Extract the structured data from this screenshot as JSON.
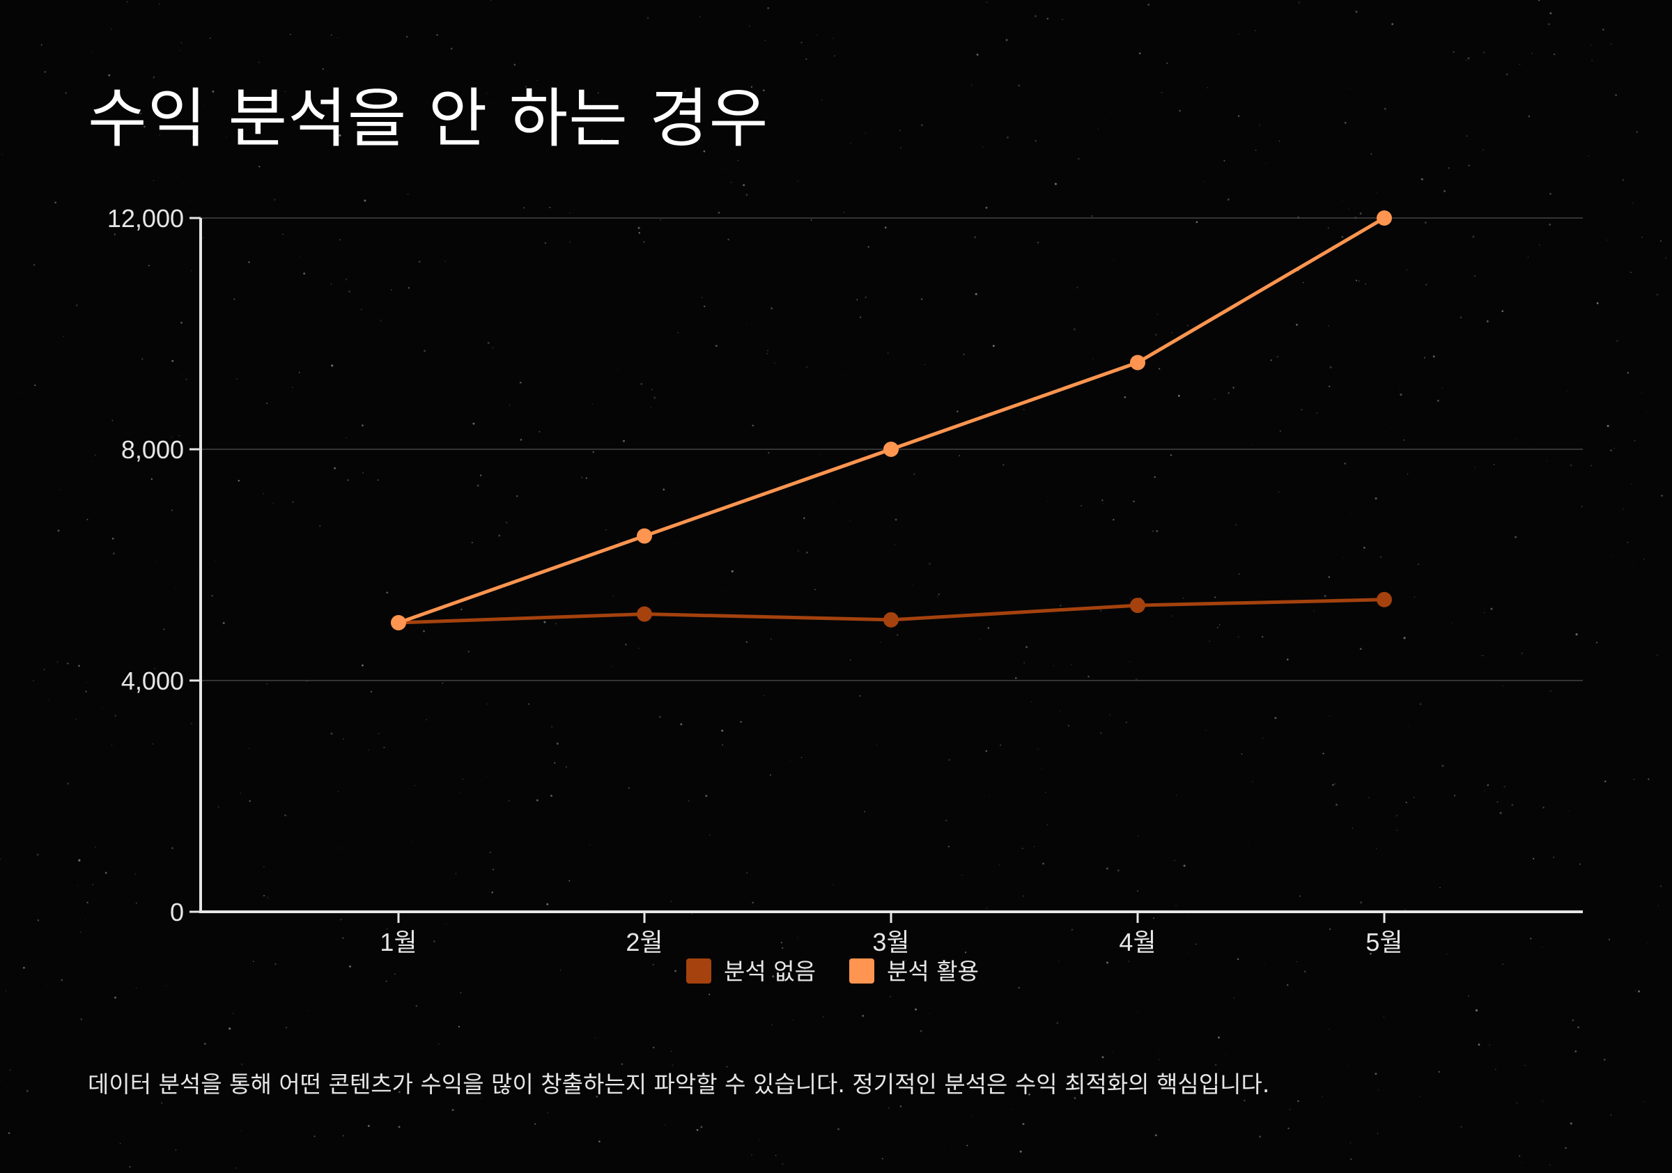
{
  "title": "수익 분석을 안 하는 경우",
  "caption": "데이터 분석을 통해 어떤 콘텐츠가 수익을 많이 창출하는지 파악할 수 있습니다. 정기적인 분석은 수익 최적화의 핵심입니다.",
  "colors": {
    "background": "#050505",
    "series_without": "#A5420E",
    "series_with": "#FF9550",
    "axis": "#e6e6e6",
    "grid": "#444444"
  },
  "chart_data": {
    "type": "line",
    "categories": [
      "1월",
      "2월",
      "3월",
      "4월",
      "5월"
    ],
    "series": [
      {
        "name": "분석 없음",
        "color": "#A5420E",
        "values": [
          5000,
          5150,
          5050,
          5300,
          5400
        ]
      },
      {
        "name": "분석 활용",
        "color": "#FF9550",
        "values": [
          5000,
          6500,
          8000,
          9500,
          12000
        ]
      }
    ],
    "yticks": [
      0,
      4000,
      8000,
      12000
    ],
    "ytick_labels": [
      "0",
      "4,000",
      "8,000",
      "12,000"
    ],
    "ylim": [
      0,
      12000
    ],
    "grid": true,
    "legend_position": "bottom-center",
    "xlabel": "",
    "ylabel": ""
  }
}
